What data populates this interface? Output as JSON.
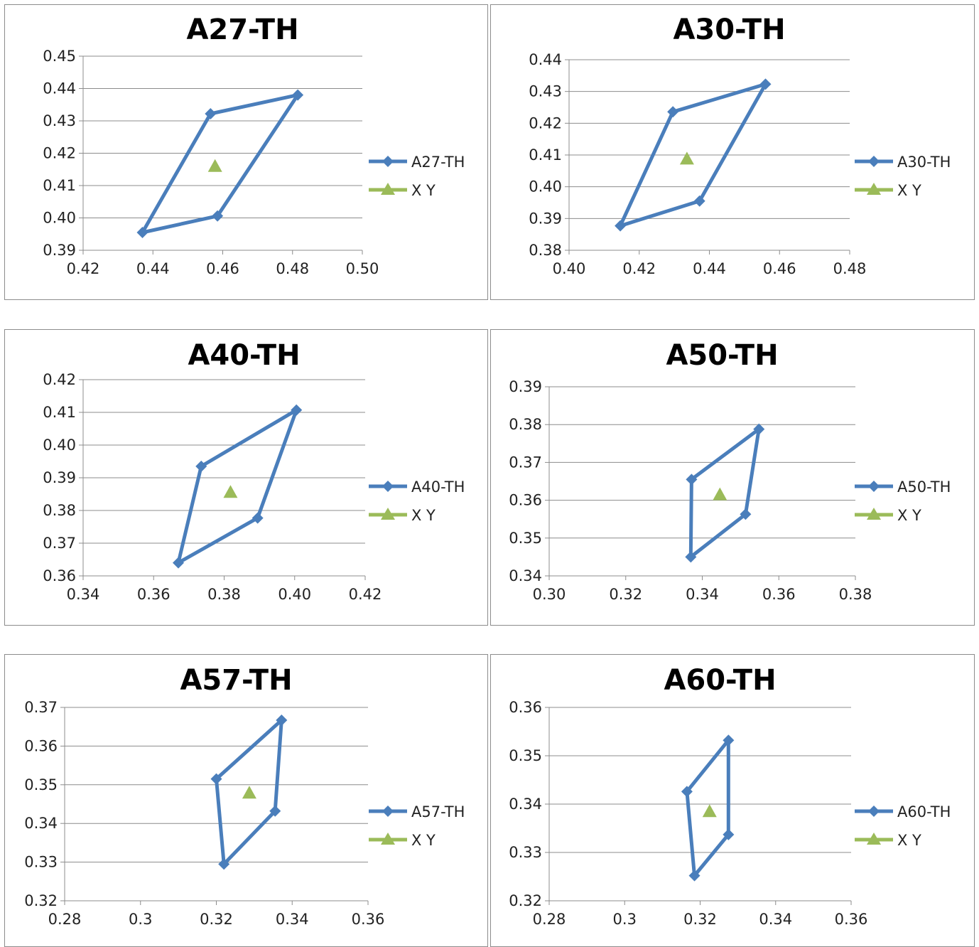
{
  "colors": {
    "polygon": "#4a7ebb",
    "xy_marker": "#9bbb59",
    "grid": "#8c8c8c",
    "axis": "#8c8c8c"
  },
  "chart_data": [
    {
      "type": "scatter",
      "title": "A27-TH",
      "legend": {
        "placement": "right",
        "entries": [
          "A27-TH",
          "X Y"
        ]
      },
      "xlim": [
        0.42,
        0.5
      ],
      "ylim": [
        0.39,
        0.45
      ],
      "xticks": [
        "0.42",
        "0.44",
        "0.46",
        "0.48",
        "0.50"
      ],
      "yticks": [
        "0.39",
        "0.40",
        "0.41",
        "0.42",
        "0.43",
        "0.44",
        "0.45"
      ],
      "grid": "horizontal",
      "series": [
        {
          "name": "A27-TH",
          "marker": "diamond",
          "line": true,
          "points": [
            [
              0.437,
              0.3955
            ],
            [
              0.4565,
              0.4322
            ],
            [
              0.4815,
              0.438
            ],
            [
              0.4585,
              0.4006
            ],
            [
              0.437,
              0.3955
            ]
          ]
        },
        {
          "name": "X Y",
          "marker": "triangle",
          "line": false,
          "points": [
            [
              0.4578,
              0.416
            ]
          ]
        }
      ]
    },
    {
      "type": "scatter",
      "title": "A30-TH",
      "legend": {
        "placement": "right",
        "entries": [
          "A30-TH",
          "X Y"
        ]
      },
      "xlim": [
        0.4,
        0.48
      ],
      "ylim": [
        0.38,
        0.44
      ],
      "xticks": [
        "0.40",
        "0.42",
        "0.44",
        "0.46",
        "0.48"
      ],
      "yticks": [
        "0.38",
        "0.39",
        "0.40",
        "0.41",
        "0.42",
        "0.43",
        "0.44"
      ],
      "grid": "horizontal",
      "series": [
        {
          "name": "A30-TH",
          "marker": "diamond",
          "line": true,
          "points": [
            [
              0.4146,
              0.3877
            ],
            [
              0.4296,
              0.4236
            ],
            [
              0.456,
              0.4323
            ],
            [
              0.4372,
              0.3955
            ],
            [
              0.4146,
              0.3877
            ]
          ]
        },
        {
          "name": "X Y",
          "marker": "triangle",
          "line": false,
          "points": [
            [
              0.4336,
              0.4088
            ]
          ]
        }
      ]
    },
    {
      "type": "scatter",
      "title": "A40-TH",
      "legend": {
        "placement": "right",
        "entries": [
          "A40-TH",
          "X Y"
        ]
      },
      "xlim": [
        0.34,
        0.42
      ],
      "ylim": [
        0.36,
        0.42
      ],
      "xticks": [
        "0.34",
        "0.36",
        "0.38",
        "0.40",
        "0.42"
      ],
      "yticks": [
        "0.36",
        "0.37",
        "0.38",
        "0.39",
        "0.40",
        "0.41",
        "0.42"
      ],
      "grid": "horizontal",
      "series": [
        {
          "name": "A40-TH",
          "marker": "diamond",
          "line": true,
          "points": [
            [
              0.367,
              0.364
            ],
            [
              0.3735,
              0.3935
            ],
            [
              0.4005,
              0.4107
            ],
            [
              0.3895,
              0.3777
            ],
            [
              0.367,
              0.364
            ]
          ]
        },
        {
          "name": "X Y",
          "marker": "triangle",
          "line": false,
          "points": [
            [
              0.3818,
              0.3856
            ]
          ]
        }
      ]
    },
    {
      "type": "scatter",
      "title": "A50-TH",
      "legend": {
        "placement": "right",
        "entries": [
          "A50-TH",
          "X Y"
        ]
      },
      "xlim": [
        0.3,
        0.38
      ],
      "ylim": [
        0.34,
        0.39
      ],
      "xticks": [
        "0.30",
        "0.32",
        "0.34",
        "0.36",
        "0.38"
      ],
      "yticks": [
        "0.34",
        "0.35",
        "0.36",
        "0.37",
        "0.38",
        "0.39"
      ],
      "grid": "horizontal",
      "series": [
        {
          "name": "A50-TH",
          "marker": "diamond",
          "line": true,
          "points": [
            [
              0.337,
              0.345
            ],
            [
              0.3372,
              0.3655
            ],
            [
              0.3548,
              0.3788
            ],
            [
              0.3513,
              0.3563
            ],
            [
              0.337,
              0.345
            ]
          ]
        },
        {
          "name": "X Y",
          "marker": "triangle",
          "line": false,
          "points": [
            [
              0.3446,
              0.3615
            ]
          ]
        }
      ]
    },
    {
      "type": "scatter",
      "title": "A57-TH",
      "legend": {
        "placement": "right",
        "entries": [
          "A57-TH",
          "X Y"
        ]
      },
      "xlim": [
        0.28,
        0.36
      ],
      "ylim": [
        0.32,
        0.37
      ],
      "xticks": [
        "0.28",
        "0.3",
        "0.32",
        "0.34",
        "0.36"
      ],
      "yticks": [
        "0.32",
        "0.33",
        "0.34",
        "0.35",
        "0.36",
        "0.37"
      ],
      "grid": "horizontal",
      "series": [
        {
          "name": "A57-TH",
          "marker": "diamond",
          "line": true,
          "points": [
            [
              0.322,
              0.3295
            ],
            [
              0.32,
              0.3515
            ],
            [
              0.3372,
              0.3667
            ],
            [
              0.3355,
              0.3432
            ],
            [
              0.322,
              0.3295
            ]
          ]
        },
        {
          "name": "X Y",
          "marker": "triangle",
          "line": false,
          "points": [
            [
              0.3287,
              0.3479
            ]
          ]
        }
      ]
    },
    {
      "type": "scatter",
      "title": "A60-TH",
      "legend": {
        "placement": "right",
        "entries": [
          "A60-TH",
          "X Y"
        ]
      },
      "xlim": [
        0.28,
        0.36
      ],
      "ylim": [
        0.32,
        0.36
      ],
      "xticks": [
        "0.28",
        "0.3",
        "0.32",
        "0.34",
        "0.36"
      ],
      "yticks": [
        "0.32",
        "0.33",
        "0.34",
        "0.35",
        "0.36"
      ],
      "grid": "horizontal",
      "series": [
        {
          "name": "A60-TH",
          "marker": "diamond",
          "line": true,
          "points": [
            [
              0.3185,
              0.3252
            ],
            [
              0.3165,
              0.3426
            ],
            [
              0.3275,
              0.3532
            ],
            [
              0.3275,
              0.3337
            ],
            [
              0.3185,
              0.3252
            ]
          ]
        },
        {
          "name": "X Y",
          "marker": "triangle",
          "line": false,
          "points": [
            [
              0.3225,
              0.3385
            ]
          ]
        }
      ]
    }
  ]
}
